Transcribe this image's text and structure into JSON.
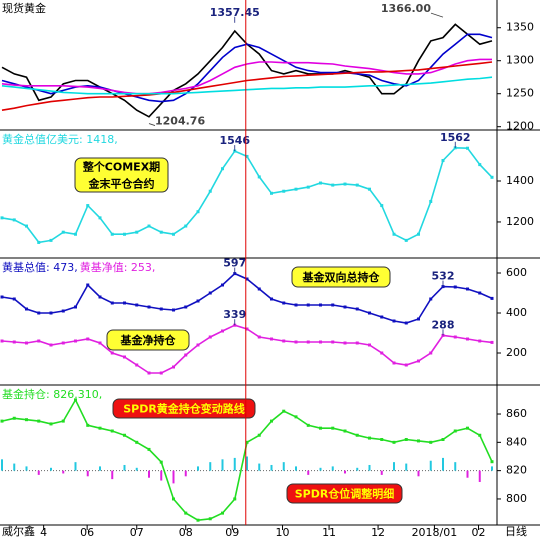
{
  "chart_data": [
    {
      "type": "line",
      "title": "现货黄金",
      "xlim": [
        0,
        40
      ],
      "ylim": [
        1195,
        1392
      ],
      "yticks": [
        1200,
        1250,
        1300,
        1350
      ],
      "x": [
        0,
        1,
        2,
        3,
        4,
        5,
        6,
        7,
        8,
        9,
        10,
        11,
        12,
        13,
        14,
        15,
        16,
        17,
        18,
        19,
        20,
        21,
        22,
        23,
        24,
        25,
        26,
        27,
        28,
        29,
        30,
        31,
        32,
        33,
        34,
        35,
        36,
        37,
        38,
        39,
        40
      ],
      "series": [
        {
          "color": "#000000",
          "values": [
            1290,
            1280,
            1275,
            1240,
            1245,
            1265,
            1270,
            1270,
            1260,
            1250,
            1240,
            1225,
            1215,
            1235,
            1255,
            1265,
            1280,
            1300,
            1320,
            1345,
            1325,
            1310,
            1285,
            1280,
            1285,
            1280,
            1280,
            1280,
            1285,
            1280,
            1275,
            1250,
            1250,
            1265,
            1300,
            1330,
            1335,
            1355,
            1340,
            1325,
            1330
          ]
        },
        {
          "color": "#0000cc",
          "values": [
            1270,
            1265,
            1260,
            1255,
            1250,
            1255,
            1260,
            1262,
            1260,
            1255,
            1250,
            1245,
            1240,
            1238,
            1240,
            1250,
            1265,
            1285,
            1305,
            1320,
            1325,
            1320,
            1310,
            1300,
            1290,
            1285,
            1282,
            1282,
            1282,
            1280,
            1278,
            1270,
            1265,
            1262,
            1270,
            1290,
            1310,
            1325,
            1340,
            1340,
            1335
          ]
        },
        {
          "color": "#e000e0",
          "values": [
            1265,
            1263,
            1262,
            1262,
            1262,
            1262,
            1261,
            1260,
            1258,
            1255,
            1252,
            1250,
            1250,
            1252,
            1255,
            1258,
            1262,
            1270,
            1280,
            1290,
            1295,
            1298,
            1298,
            1297,
            1297,
            1297,
            1296,
            1295,
            1292,
            1290,
            1288,
            1285,
            1282,
            1280,
            1280,
            1282,
            1288,
            1295,
            1300,
            1302,
            1302
          ]
        },
        {
          "color": "#e00000",
          "values": [
            1225,
            1228,
            1232,
            1235,
            1238,
            1240,
            1242,
            1244,
            1245,
            1245,
            1246,
            1247,
            1248,
            1250,
            1252,
            1255,
            1258,
            1261,
            1264,
            1267,
            1270,
            1272,
            1274,
            1276,
            1277,
            1278,
            1279,
            1280,
            1281,
            1282,
            1283,
            1283,
            1284,
            1285,
            1286,
            1288,
            1290,
            1292,
            1294,
            1296,
            1298
          ]
        },
        {
          "color": "#00dde0",
          "values": [
            1262,
            1260,
            1258,
            1256,
            1254,
            1252,
            1251,
            1250,
            1250,
            1250,
            1250,
            1250,
            1250,
            1250,
            1250,
            1251,
            1252,
            1253,
            1254,
            1255,
            1256,
            1257,
            1258,
            1258,
            1259,
            1259,
            1260,
            1260,
            1260,
            1261,
            1262,
            1262,
            1263,
            1264,
            1265,
            1266,
            1268,
            1270,
            1272,
            1273,
            1275
          ]
        }
      ],
      "annotations": [
        {
          "label": "1357.45",
          "value": 1357.45,
          "x": 19,
          "color": "#1a237e"
        },
        {
          "label": "1366.00",
          "value": 1366,
          "x": 36,
          "color": "#444444"
        },
        {
          "label": "1204.76",
          "value": 1204.76,
          "x": 12,
          "color": "#444444"
        }
      ]
    },
    {
      "type": "line",
      "xlim": [
        0,
        40
      ],
      "ylim": [
        1024,
        1649
      ],
      "yticks": [
        1200,
        1400
      ],
      "markers": true,
      "x": [
        0,
        1,
        2,
        3,
        4,
        5,
        6,
        7,
        8,
        9,
        10,
        11,
        12,
        13,
        14,
        15,
        16,
        17,
        18,
        19,
        20,
        21,
        22,
        23,
        24,
        25,
        26,
        27,
        28,
        29,
        30,
        31,
        32,
        33,
        34,
        35,
        36,
        37,
        38,
        39,
        40
      ],
      "series": [
        {
          "name": "黄金总值亿美元: 1418,",
          "color": "#22d8e0",
          "values": [
            1220,
            1210,
            1180,
            1100,
            1110,
            1150,
            1140,
            1280,
            1220,
            1140,
            1140,
            1150,
            1180,
            1150,
            1140,
            1180,
            1250,
            1350,
            1460,
            1546,
            1520,
            1420,
            1340,
            1350,
            1360,
            1370,
            1390,
            1380,
            1385,
            1380,
            1360,
            1280,
            1140,
            1110,
            1140,
            1300,
            1500,
            1562,
            1560,
            1480,
            1418
          ]
        }
      ],
      "annotations": [
        {
          "value": 1546,
          "x": 19,
          "color": "#1a237e"
        },
        {
          "value": 1562,
          "x": 37,
          "color": "#1a237e"
        }
      ],
      "notes": [
        [
          "整个COMEX期",
          "金末平仓合约"
        ]
      ],
      "note_color": "#ffff33"
    },
    {
      "type": "line",
      "xlim": [
        0,
        40
      ],
      "ylim": [
        40,
        675
      ],
      "yticks": [
        200,
        400,
        600
      ],
      "markers": true,
      "x": [
        0,
        1,
        2,
        3,
        4,
        5,
        6,
        7,
        8,
        9,
        10,
        11,
        12,
        13,
        14,
        15,
        16,
        17,
        18,
        19,
        20,
        21,
        22,
        23,
        24,
        25,
        26,
        27,
        28,
        29,
        30,
        31,
        32,
        33,
        34,
        35,
        36,
        37,
        38,
        39,
        40
      ],
      "series": [
        {
          "name": "黄基总值: 473,",
          "color": "#1010c0",
          "values": [
            480,
            470,
            420,
            400,
            400,
            410,
            430,
            540,
            480,
            450,
            450,
            440,
            430,
            420,
            415,
            430,
            460,
            500,
            540,
            597,
            570,
            520,
            470,
            450,
            440,
            440,
            440,
            440,
            430,
            420,
            400,
            380,
            360,
            350,
            370,
            470,
            532,
            530,
            520,
            500,
            473
          ]
        },
        {
          "name": "黄基净值: 253,",
          "color": "#e020e0",
          "values": [
            260,
            255,
            250,
            260,
            240,
            250,
            260,
            270,
            250,
            200,
            180,
            140,
            100,
            100,
            130,
            190,
            240,
            280,
            310,
            339,
            320,
            280,
            270,
            260,
            255,
            255,
            255,
            255,
            250,
            250,
            240,
            200,
            150,
            140,
            160,
            200,
            288,
            280,
            270,
            260,
            253
          ]
        }
      ],
      "annotations": [
        {
          "value": 597,
          "x": 19,
          "color": "#1a237e"
        },
        {
          "value": 532,
          "x": 36,
          "color": "#1a237e"
        },
        {
          "value": 339,
          "x": 19,
          "color": "#1a237e"
        },
        {
          "value": 288,
          "x": 36,
          "color": "#1a237e"
        }
      ],
      "notes": [
        [
          "基金双向总持仓"
        ],
        [
          "基金净持仓"
        ]
      ],
      "note_color": "#ffff33"
    },
    {
      "type": "line",
      "xlim": [
        0,
        40
      ],
      "ylim": [
        781.6,
        880.5
      ],
      "yticks": [
        800,
        820,
        840,
        860
      ],
      "markers": true,
      "x": [
        0,
        1,
        2,
        3,
        4,
        5,
        6,
        7,
        8,
        9,
        10,
        11,
        12,
        13,
        14,
        15,
        16,
        17,
        18,
        19,
        20,
        21,
        22,
        23,
        24,
        25,
        26,
        27,
        28,
        29,
        30,
        31,
        32,
        33,
        34,
        35,
        36,
        37,
        38,
        39,
        40
      ],
      "series": [
        {
          "name": "基金持仓: 826.310,",
          "color": "#22dd22",
          "values": [
            855,
            857,
            856,
            855,
            853,
            855,
            870,
            852,
            850,
            848,
            845,
            840,
            835,
            826,
            800,
            790,
            785,
            786,
            790,
            800,
            840,
            845,
            855,
            862,
            858,
            852,
            850,
            850,
            848,
            845,
            843,
            842,
            840,
            842,
            841,
            840,
            842,
            848,
            850,
            845,
            826.31
          ]
        }
      ],
      "bars": {
        "baseline": 820,
        "colors": [
          "#22c8e0",
          "#e020e0"
        ],
        "values": [
          8,
          5,
          3,
          -3,
          2,
          -2,
          6,
          -4,
          3,
          -6,
          4,
          2,
          -5,
          -7,
          -9,
          -4,
          3,
          6,
          8,
          9,
          10,
          5,
          4,
          6,
          3,
          -3,
          2,
          3,
          -2,
          2,
          4,
          -3,
          6,
          5,
          -4,
          7,
          9,
          6,
          -5,
          -8,
          3
        ]
      },
      "notes": [
        [
          "SPDR黄金持仓变动路线"
        ],
        [
          "SPDR仓位调整明细"
        ]
      ],
      "note_color": "#ee1111",
      "xticks": [
        {
          "value": 3.4,
          "label": "4"
        },
        {
          "value": 6.95,
          "label": "06"
        },
        {
          "value": 11,
          "label": "07"
        },
        {
          "value": 15,
          "label": "08"
        },
        {
          "value": 18.8,
          "label": "09"
        },
        {
          "value": 22.9,
          "label": "10"
        },
        {
          "value": 26.7,
          "label": "11"
        },
        {
          "value": 30.7,
          "label": "12"
        },
        {
          "value": 35.3,
          "label": "2018/01"
        },
        {
          "value": 38.9,
          "label": "02"
        }
      ]
    }
  ],
  "marker_x": 19.9,
  "footer_left": "威尔鑫",
  "footer_right": "日线"
}
